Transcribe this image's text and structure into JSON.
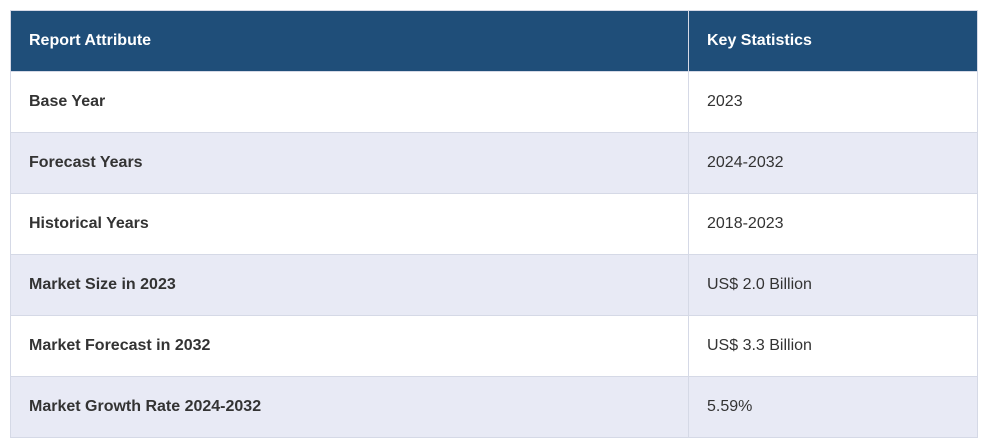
{
  "table": {
    "header": [
      "Report Attribute",
      "Key Statistics"
    ],
    "rows": [
      [
        "Base Year",
        "2023"
      ],
      [
        "Forecast Years",
        "2024-2032"
      ],
      [
        "Historical Years",
        "2018-2023"
      ],
      [
        "Market Size in 2023",
        "US$ 2.0 Billion"
      ],
      [
        "Market Forecast in 2032",
        "US$ 3.3 Billion"
      ],
      [
        "Market Growth Rate 2024-2032",
        "5.59%"
      ]
    ]
  }
}
